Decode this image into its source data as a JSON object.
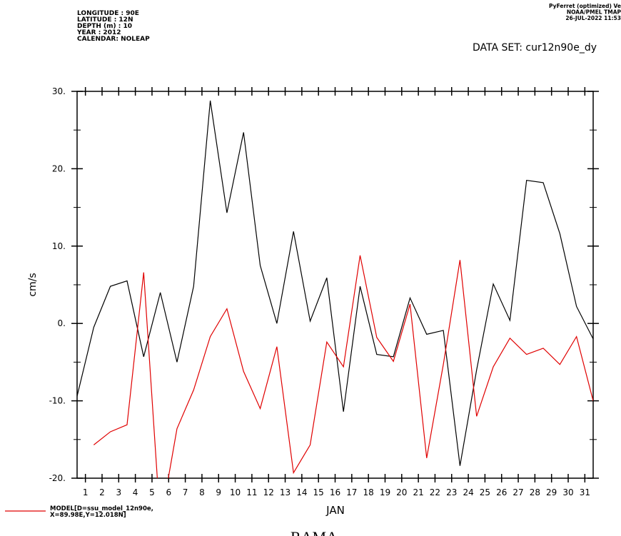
{
  "chart_data": {
    "type": "line",
    "header_left": [
      "LONGITUDE : 90E",
      "LATITUDE : 12N",
      "DEPTH (m) : 10",
      "YEAR : 2012",
      "CALENDAR: NOLEAP"
    ],
    "header_right": [
      "PyFerret (optimized) Ve",
      "NOAA/PMEL TMAP",
      "26-JUL-2022 11:53"
    ],
    "dataset": "DATA SET: cur12n90e_dy",
    "ylabel": "cm/s",
    "xlabel": "JAN",
    "xlim": [
      0,
      31
    ],
    "xticks": [
      {
        "value": 0.5,
        "label": "1"
      },
      {
        "value": 1.5,
        "label": "2"
      },
      {
        "value": 2.5,
        "label": "3"
      },
      {
        "value": 3.5,
        "label": "4"
      },
      {
        "value": 4.5,
        "label": "5"
      },
      {
        "value": 5.5,
        "label": "6"
      },
      {
        "value": 6.5,
        "label": "7"
      },
      {
        "value": 7.5,
        "label": "8"
      },
      {
        "value": 8.5,
        "label": "9"
      },
      {
        "value": 9.5,
        "label": "10"
      },
      {
        "value": 10.5,
        "label": "11"
      },
      {
        "value": 11.5,
        "label": "12"
      },
      {
        "value": 12.5,
        "label": "13"
      },
      {
        "value": 13.5,
        "label": "14"
      },
      {
        "value": 14.5,
        "label": "15"
      },
      {
        "value": 15.5,
        "label": "16"
      },
      {
        "value": 16.5,
        "label": "17"
      },
      {
        "value": 17.5,
        "label": "18"
      },
      {
        "value": 18.5,
        "label": "19"
      },
      {
        "value": 19.5,
        "label": "20"
      },
      {
        "value": 20.5,
        "label": "21"
      },
      {
        "value": 21.5,
        "label": "22"
      },
      {
        "value": 22.5,
        "label": "23"
      },
      {
        "value": 23.5,
        "label": "24"
      },
      {
        "value": 24.5,
        "label": "25"
      },
      {
        "value": 25.5,
        "label": "26"
      },
      {
        "value": 26.5,
        "label": "27"
      },
      {
        "value": 27.5,
        "label": "28"
      },
      {
        "value": 28.5,
        "label": "29"
      },
      {
        "value": 29.5,
        "label": "30"
      },
      {
        "value": 30.5,
        "label": "31"
      }
    ],
    "ylim": [
      -20,
      30
    ],
    "yticks": [
      {
        "value": 30,
        "label": "30."
      },
      {
        "value": 20,
        "label": "20."
      },
      {
        "value": 10,
        "label": "10."
      },
      {
        "value": 0,
        "label": "0."
      },
      {
        "value": -10,
        "label": "-10."
      },
      {
        "value": -20,
        "label": "-20."
      }
    ],
    "series": [
      {
        "name": "RAMA",
        "color": "#000000",
        "x": [
          0,
          1,
          2,
          3,
          4,
          5,
          6,
          7,
          8,
          9,
          10,
          11,
          12,
          13,
          14,
          15,
          16,
          17,
          18,
          19,
          20,
          21,
          22,
          23,
          24,
          25,
          26,
          27,
          28,
          29,
          30,
          31
        ],
        "values": [
          -9.4,
          -0.5,
          4.8,
          5.5,
          -4.3,
          4.0,
          -5.0,
          4.8,
          28.8,
          14.3,
          24.7,
          7.5,
          0.0,
          11.9,
          0.3,
          5.9,
          -11.4,
          4.8,
          -4.0,
          -4.3,
          3.3,
          -1.4,
          -0.9,
          -18.4,
          -6.0,
          5.1,
          0.4,
          18.5,
          18.2,
          11.6,
          2.2,
          -2.0
        ]
      },
      {
        "name": "MODEL[D=ssu_model_12n90e, X=89.98E,Y=12.018N]",
        "color": "#e00000",
        "x": [
          1,
          2,
          3,
          4,
          5,
          6,
          7,
          8,
          9,
          10,
          11,
          12,
          13,
          14,
          15,
          16,
          17,
          18,
          19,
          20,
          21,
          22,
          23,
          24,
          25,
          26,
          27,
          28,
          29,
          30,
          31
        ],
        "values": [
          -15.7,
          -14.0,
          -13.1,
          6.6,
          -25.9,
          -13.6,
          -8.6,
          -1.7,
          1.9,
          -6.2,
          -11.0,
          -3.0,
          -19.3,
          -15.7,
          -2.4,
          -5.6,
          8.8,
          -1.8,
          -4.9,
          2.5,
          -17.4,
          -5.3,
          8.2,
          -12.0,
          -5.6,
          -1.9,
          -4.0,
          -3.2,
          -5.3,
          -1.7,
          -10.0
        ]
      }
    ]
  }
}
